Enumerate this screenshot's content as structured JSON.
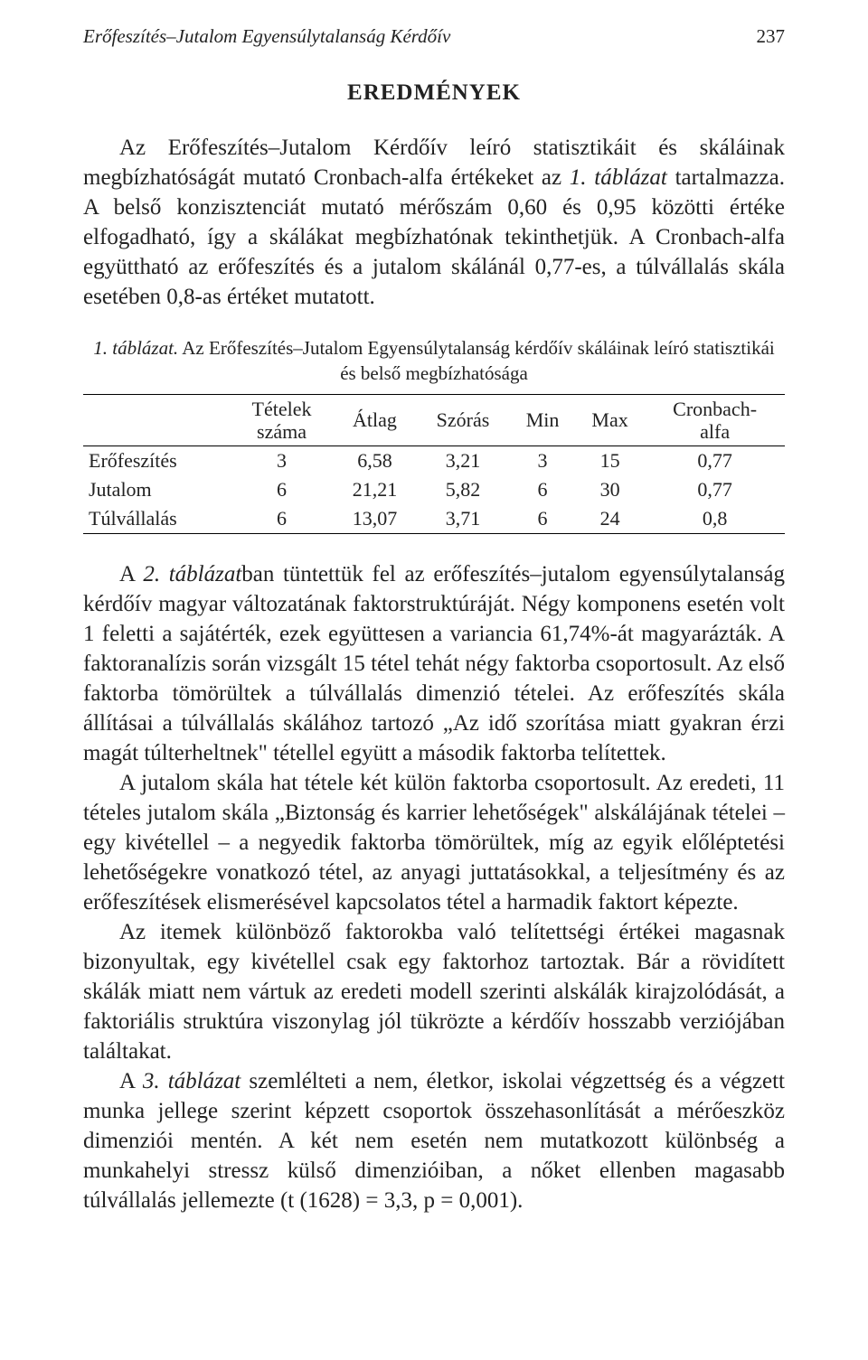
{
  "runningHead": {
    "title": "Erőfeszítés–Jutalom Egyensúlytalanság Kérdőív",
    "page": "237"
  },
  "sectionHeading": "EREDMÉNYEK",
  "para1": "Az Erőfeszítés–Jutalom Kérdőív leíró statisztikáit és skáláinak megbízhatóságát mutató Cronbach-alfa értékeket az ",
  "para1_ital": "1. táblázat",
  "para1_tail": " tartalmazza. A belső konzisztenciát mutató mérőszám 0,60 és 0,95 közötti értéke elfogadható, így a skálákat megbízhatónak tekinthetjük. A Cronbach-alfa együttható az erőfeszítés és a jutalom skálánál 0,77-es, a túlvállalás skála esetében 0,8-as értéket mutatott.",
  "tableCaption": {
    "lead": "1. táblázat.",
    "text": " Az Erőfeszítés–Jutalom Egyensúlytalanság kérdőív skáláinak leíró statisztikái és belső megbízhatósága"
  },
  "table": {
    "headers": {
      "c1a": "Tételek",
      "c1b": "száma",
      "c2": "Átlag",
      "c3": "Szórás",
      "c4": "Min",
      "c5": "Max",
      "c6a": "Cronbach-",
      "c6b": "alfa"
    },
    "rows": [
      {
        "label": "Erőfeszítés",
        "n": "3",
        "mean": "6,58",
        "sd": "3,21",
        "min": "3",
        "max": "15",
        "alpha": "0,77"
      },
      {
        "label": "Jutalom",
        "n": "6",
        "mean": "21,21",
        "sd": "5,82",
        "min": "6",
        "max": "30",
        "alpha": "0,77"
      },
      {
        "label": "Túlvállalás",
        "n": "6",
        "mean": "13,07",
        "sd": "3,71",
        "min": "6",
        "max": "24",
        "alpha": "0,8"
      }
    ]
  },
  "para2_lead": "A ",
  "para2_ital": "2. táblázat",
  "para2_tail": "ban tüntettük fel az erőfeszítés–jutalom egyensúlytalanság kérdőív magyar változatának faktorstruktúráját. Négy komponens esetén volt 1 feletti a sajátérték, ezek együttesen a variancia 61,74%-át magyarázták. A faktoranalízis során vizsgált 15 tétel tehát négy faktorba csoportosult. Az első faktorba tömörültek a túlvállalás dimenzió tételei. Az erőfeszítés skála állításai a túlvállalás skálához tartozó „Az idő szorítása miatt gyakran érzi magát túlterheltnek\" tétellel együtt a második faktorba telítettek.",
  "para3": "A jutalom skála hat tétele két külön faktorba csoportosult. Az eredeti, 11 tételes jutalom skála „Biztonság és karrier lehetőségek\" alskálájának tételei – egy kivétellel – a negyedik faktorba tömörültek, míg az egyik előléptetési lehetőségekre vonatkozó tétel, az anyagi juttatásokkal, a teljesítmény és az erőfeszítések elismerésével kapcsolatos tétel a harmadik faktort képezte.",
  "para4": "Az itemek különböző faktorokba való telítettségi értékei magasnak bizonyultak, egy kivétellel csak egy faktorhoz tartoztak. Bár a rövidített skálák miatt nem vártuk az eredeti modell szerinti alskálák kirajzolódását, a faktoriális struktúra viszonylag jól tükrözte a kérdőív hosszabb verziójában találtakat.",
  "para5_lead": "A ",
  "para5_ital": "3. táblázat",
  "para5_tail": " szemlélteti a nem, életkor, iskolai végzettség és a végzett munka jellege szerint képzett csoportok összehasonlítását a mérőeszköz dimenziói mentén. A két nem esetén nem mutatkozott különbség a munkahelyi stressz külső dimenzióiban, a nőket ellenben magasabb túlvállalás jellemezte (t (1628) = 3,3, p = 0,001)."
}
